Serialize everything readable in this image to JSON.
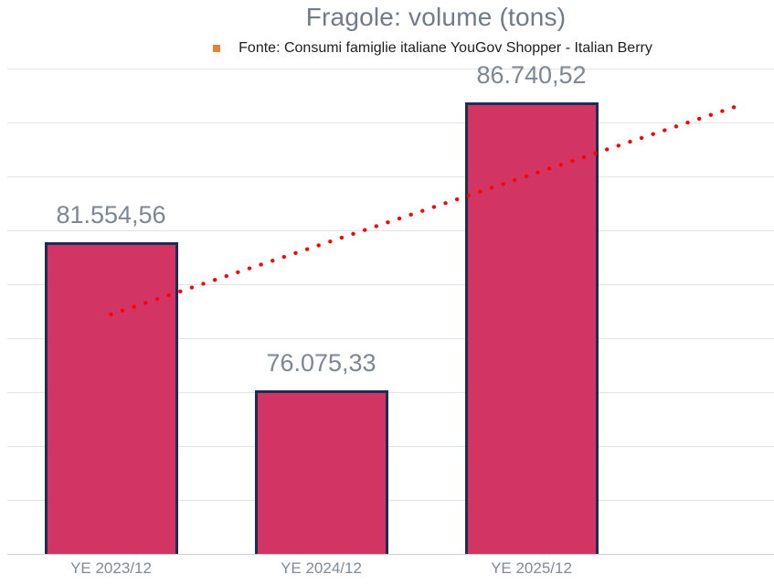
{
  "colors": {
    "background": "#FFFFFF",
    "bar_fill": "#D23564",
    "bar_border": "#1B2D55",
    "trend_red": "#FF0000",
    "gridline": "#E0E3E8",
    "axis_line": "#CFD4DA",
    "title_text": "#6F7B88",
    "value_label_text": "#7B8795",
    "axis_label_text": "#7E8A98",
    "legend_text": "#1F1F1F",
    "legend_marker": "#ED7D31"
  },
  "chart_data": {
    "type": "bar",
    "title": "Fragole: volume (tons)",
    "source_legend": "Fonte: Consumi famiglie italiane YouGov Shopper - Italian Berry",
    "categories": [
      "YE 2023/12",
      "YE 2024/12",
      "YE 2025/12"
    ],
    "values": [
      81554.56,
      76075.33,
      86740.52
    ],
    "value_labels": [
      "81.554,56",
      "76.075,33",
      "86.740,52"
    ],
    "xlabel": "",
    "ylabel": "",
    "ylim": [
      70000,
      88000
    ],
    "grid_step": 2000,
    "grid": "horizontal-only",
    "y_tick_labels_visible": false,
    "legend_position": "top-center",
    "trendline": {
      "type": "linear",
      "style": "dotted",
      "color": "#FF0000",
      "from": {
        "category_x": 1,
        "value": 78880
      },
      "to": {
        "category_x": 4,
        "value": 86660
      },
      "note": "linear trend extended about one category beyond the last bar"
    }
  }
}
